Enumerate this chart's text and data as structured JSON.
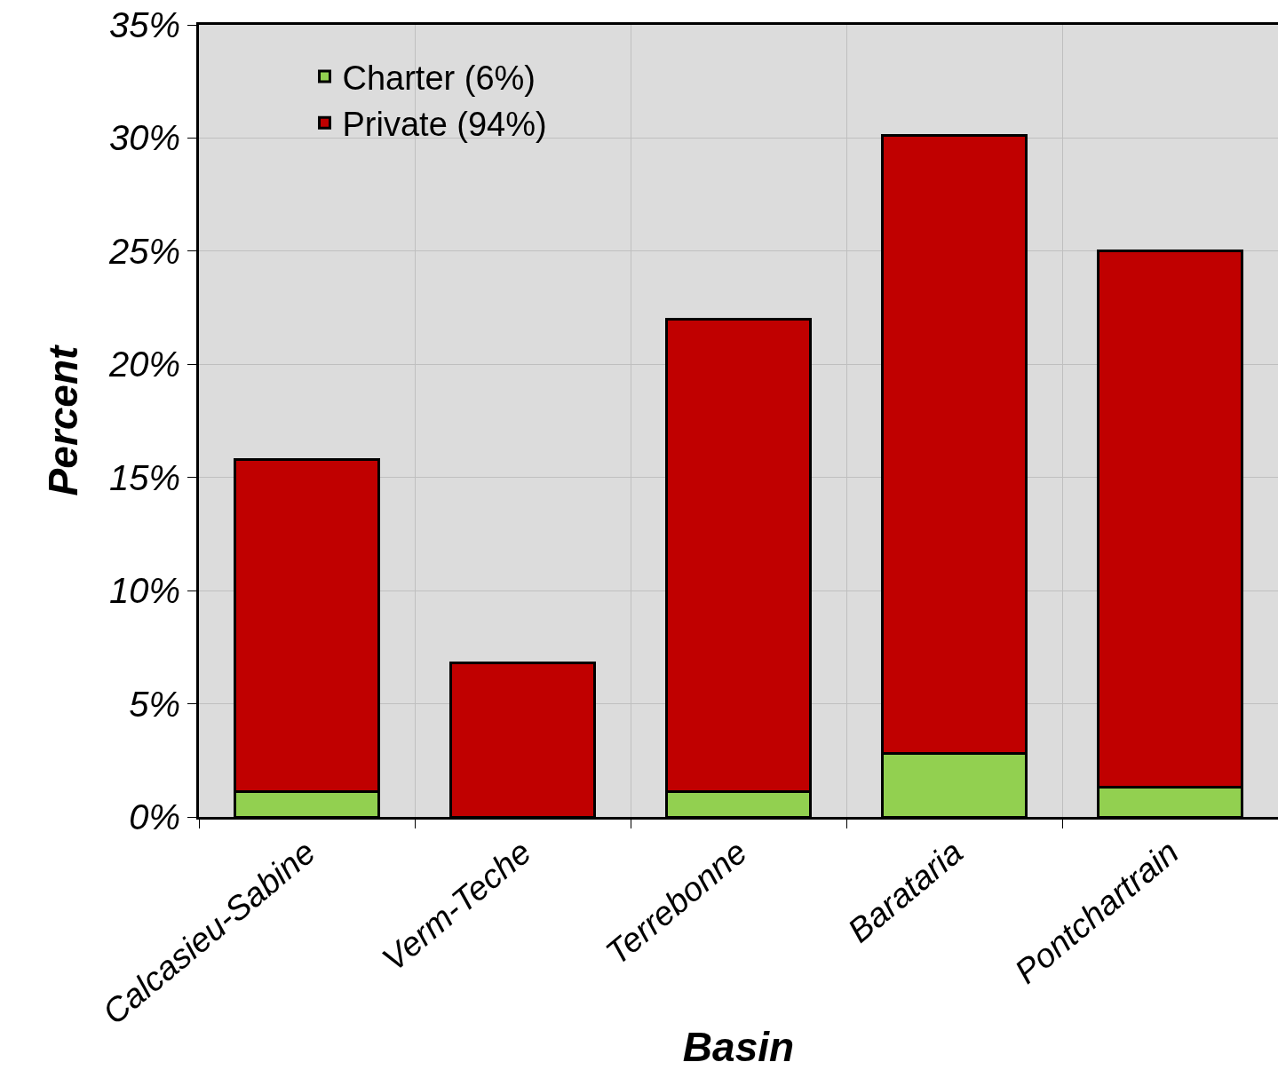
{
  "chart_data": {
    "type": "bar",
    "stacked": true,
    "xlabel": "Basin",
    "ylabel": "Percent",
    "categories": [
      "Calcasieu-Sabine",
      "Verm-Teche",
      "Terrebonne",
      "Barataria",
      "Pontchartrain"
    ],
    "series": [
      {
        "name": "Charter (6%)",
        "color": "#92d050",
        "values": [
          1.1,
          0,
          1.1,
          2.8,
          1.3
        ]
      },
      {
        "name": "Private (94%)",
        "color": "#c00000",
        "values": [
          14.7,
          6.8,
          20.9,
          27.3,
          23.7
        ]
      }
    ],
    "ylim": [
      0,
      35
    ],
    "yticks": [
      {
        "value": 0,
        "label": "0%"
      },
      {
        "value": 5,
        "label": "5%"
      },
      {
        "value": 10,
        "label": "10%"
      },
      {
        "value": 15,
        "label": "15%"
      },
      {
        "value": 20,
        "label": "20%"
      },
      {
        "value": 25,
        "label": "25%"
      },
      {
        "value": 30,
        "label": "30%"
      },
      {
        "value": 35,
        "label": "35%"
      }
    ],
    "grid": true,
    "legend": "top left"
  }
}
